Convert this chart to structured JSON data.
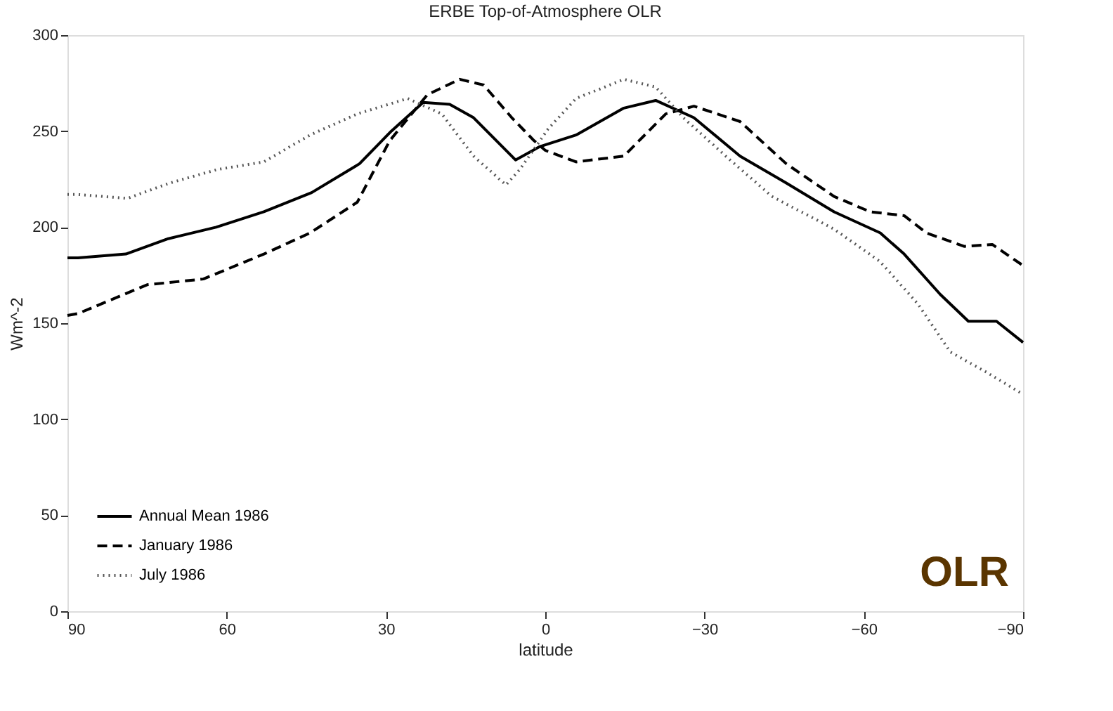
{
  "chart_data": {
    "type": "line",
    "title": "ERBE Top-of-Atmosphere OLR",
    "xlabel": "latitude",
    "ylabel": "Wm^-2",
    "xlim": [
      90,
      -90
    ],
    "xticks": [
      90,
      60,
      30,
      0,
      -30,
      -60,
      -90
    ],
    "ylim": [
      0,
      300
    ],
    "yticks": [
      0,
      50,
      100,
      150,
      200,
      250,
      300
    ],
    "grid": false,
    "legend": "bottom left",
    "marker": "none",
    "annotations": [
      "OLR"
    ],
    "series": [
      {
        "name": "Annual Mean 1986",
        "color": "#000000",
        "line_style": "solid",
        "x": [
          90,
          88,
          79,
          71,
          62,
          53,
          44,
          35,
          29,
          23,
          18,
          13.5,
          5.6,
          1,
          -5.8,
          -14.8,
          -20.8,
          -28,
          -36.7,
          -45.4,
          -54.4,
          -63.1,
          -67.6,
          -74.4,
          -79.7,
          -85,
          -90
        ],
        "values": [
          184,
          184,
          186,
          194,
          200,
          208,
          218,
          233,
          250,
          265,
          264,
          257,
          235,
          242,
          248,
          262,
          266,
          257,
          237,
          223,
          208,
          197,
          186,
          165,
          151,
          151,
          140
        ]
      },
      {
        "name": "January 1986",
        "color": "#000000",
        "line_style": "dashed",
        "x": [
          90,
          88,
          75,
          64.4,
          53,
          44.3,
          35.4,
          29.3,
          22.2,
          16.1,
          11.6,
          6.3,
          2.1,
          0,
          -5.8,
          -14.8,
          -22.7,
          -28,
          -36.7,
          -45.4,
          -54.4,
          -61.2,
          -67.6,
          -71.8,
          -78.9,
          -84.2,
          -90
        ],
        "values": [
          154,
          155,
          170,
          173,
          186,
          197,
          213,
          245,
          269,
          277,
          274,
          257,
          245,
          240,
          234,
          237,
          259,
          263,
          255,
          233,
          216,
          208,
          206,
          197,
          190,
          191,
          180
        ]
      },
      {
        "name": "July 1986",
        "color": "#555555",
        "line_style": "dotted",
        "x": [
          90,
          88,
          78.7,
          70.7,
          61.8,
          53,
          44.3,
          35.4,
          25.9,
          19.5,
          13.5,
          7.4,
          4.8,
          -0.5,
          -5.8,
          -14.8,
          -20.8,
          -26,
          -34,
          -42.7,
          -54.4,
          -63.1,
          -70.2,
          -76.3,
          -83.4,
          -90
        ],
        "values": [
          217,
          217,
          215,
          223,
          230,
          234,
          248,
          259,
          267,
          259,
          237,
          222,
          230,
          251,
          267,
          277,
          273,
          257,
          237,
          216,
          199,
          182,
          160,
          135,
          124,
          113
        ]
      }
    ]
  }
}
